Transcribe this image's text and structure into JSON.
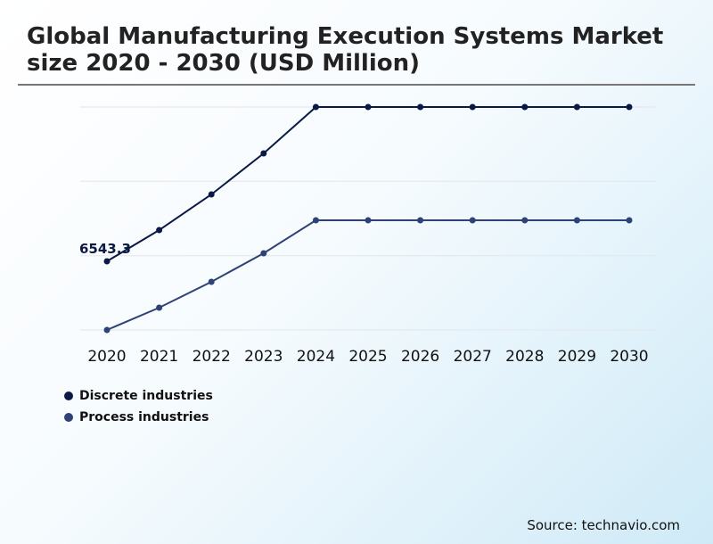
{
  "chart_data": {
    "type": "line",
    "title": "Global Manufacturing Execution Systems Market size 2020 - 2030 (USD Million)",
    "xlabel": "",
    "ylabel": "",
    "categories": [
      "2020",
      "2021",
      "2022",
      "2023",
      "2024",
      "2025",
      "2026",
      "2027",
      "2028",
      "2029",
      "2030"
    ],
    "series": [
      {
        "name": "Discrete industries",
        "color": "#0b1a45",
        "values": [
          6543.3,
          7383,
          8343,
          9447,
          10695,
          10695,
          10695,
          10695,
          10695,
          10695,
          10695
        ]
      },
      {
        "name": "Process industries",
        "color": "#2e4275",
        "values": [
          4695,
          5295,
          5991,
          6759,
          7647,
          7647,
          7647,
          7647,
          7647,
          7647,
          7647
        ]
      }
    ],
    "data_labels": [
      {
        "series": 0,
        "index": 0,
        "text": "6543.3"
      }
    ],
    "ylim": [
      4695,
      10695
    ],
    "y_axis_visible": false,
    "grid": true,
    "legend_position": "bottom-left"
  },
  "source": "Source: technavio.com"
}
